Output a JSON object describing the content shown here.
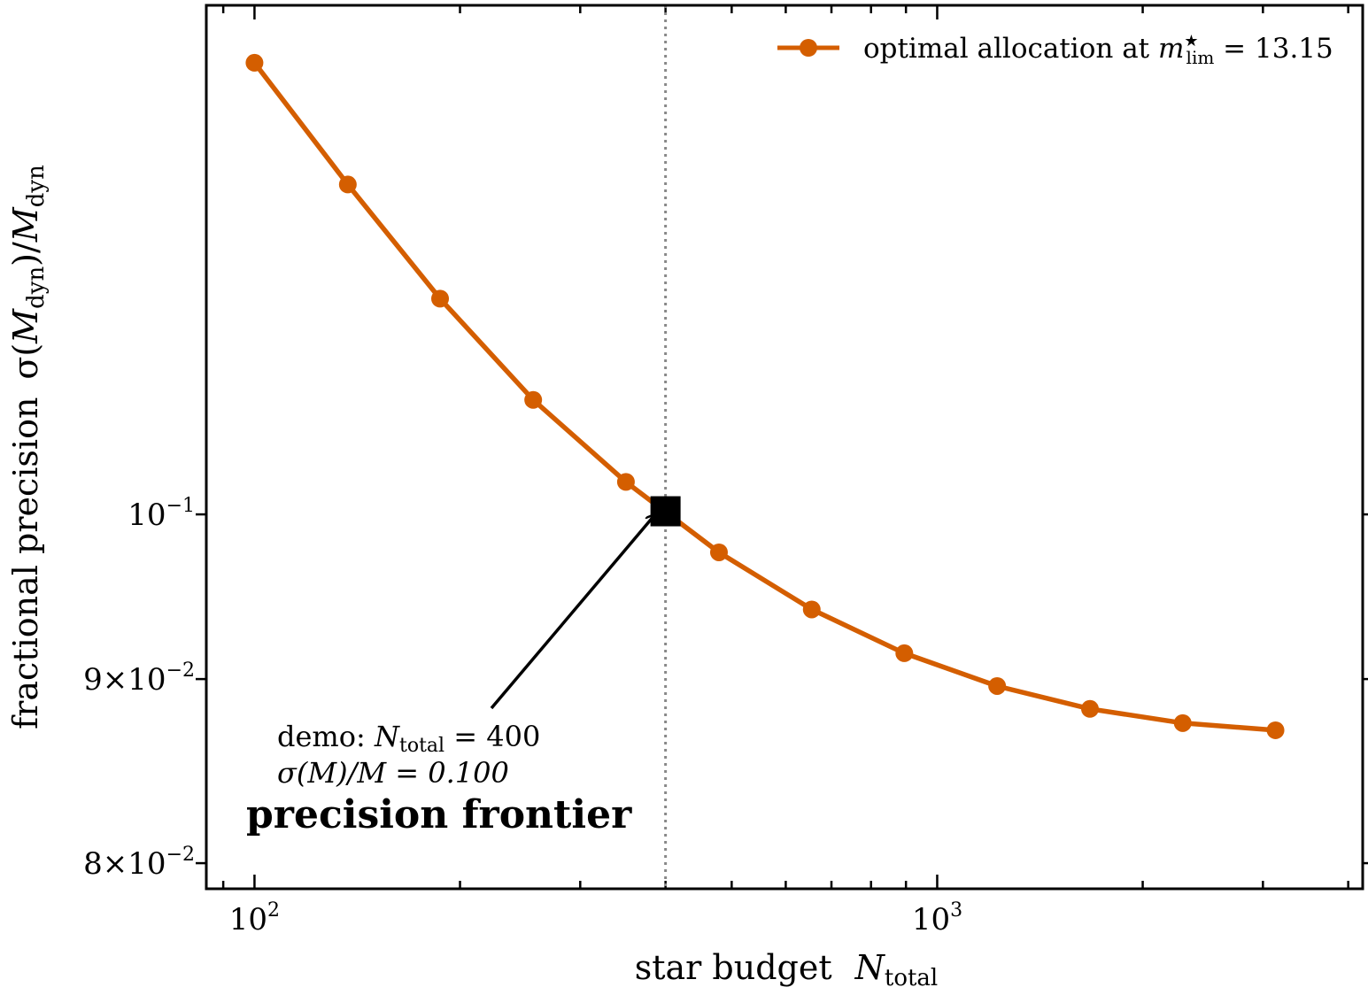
{
  "chart_data": {
    "type": "line",
    "xscale": "log",
    "yscale": "log",
    "xlim": [
      85,
      4200
    ],
    "ylim": [
      0.0787,
      0.1385
    ],
    "xlabel": {
      "text": "star budget",
      "math_symbol": "N",
      "math_sub": "total"
    },
    "ylabel": {
      "text": "fractional precision",
      "math": "σ(M_dyn)/M_dyn",
      "pre": "σ(",
      "sym1": "M",
      "sub1": "dyn",
      "mid": ")/",
      "sym2": "M",
      "sub2": "dyn"
    },
    "x_ticks": [
      {
        "value": 100,
        "base": "10",
        "exp": "2"
      },
      {
        "value": 1000,
        "base": "10",
        "exp": "3"
      }
    ],
    "y_ticks": [
      {
        "value": 0.1,
        "pre": "",
        "base": "10",
        "exp": "−1"
      },
      {
        "value": 0.09,
        "pre": "9×",
        "base": "10",
        "exp": "−2"
      },
      {
        "value": 0.08,
        "pre": "8×",
        "base": "10",
        "exp": "−2"
      }
    ],
    "series": [
      {
        "name": "optimal allocation at m_lim* = 13.15",
        "legend": {
          "prefix": "optimal allocation at ",
          "sym": "m",
          "sup": "★",
          "sub": "lim",
          "suffix": " = 13.15"
        },
        "color": "#d45e00",
        "x": [
          100,
          137,
          187,
          256,
          350,
          479,
          655,
          895,
          1224,
          1674,
          2289,
          3130
        ],
        "y": [
          0.1335,
          0.1235,
          0.1148,
          0.1076,
          0.1021,
          0.0976,
          0.0941,
          0.0915,
          0.0896,
          0.0883,
          0.0875,
          0.0871
        ]
      }
    ],
    "reference_line": {
      "x": 400,
      "color": "#888888",
      "style": "dotted"
    },
    "highlight_point": {
      "x": 400,
      "y": 0.1002,
      "marker": "square",
      "color": "#000000"
    },
    "annotation": {
      "line1_prefix": "demo: ",
      "line1_sym": "N",
      "line1_sub": "total",
      "line1_suffix": " = 400",
      "line2": "σ(M)/M = 0.100"
    },
    "title": "precision frontier",
    "legend_position": "top-right",
    "grid": false
  }
}
